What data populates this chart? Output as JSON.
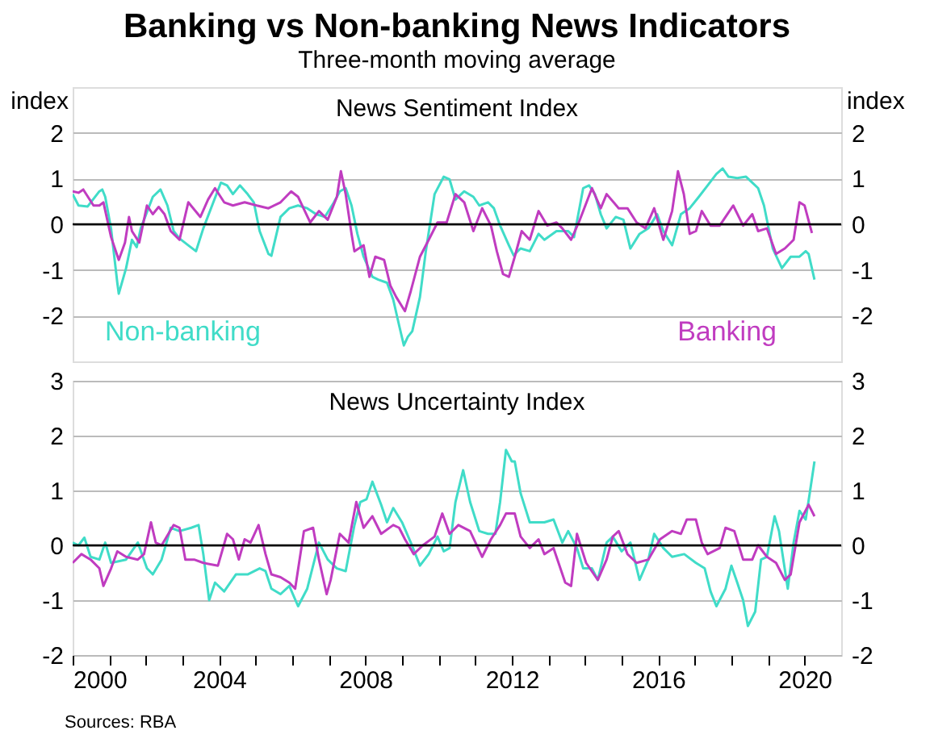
{
  "chart_data": [
    {
      "type": "line",
      "title": "Banking vs Non-banking News Indicators",
      "subtitle": "Three-month moving average",
      "ylabel": "index",
      "y2label": "index",
      "annotations": [
        "News Sentiment Index"
      ],
      "xlim": [
        2000,
        2021
      ],
      "ylim": [
        -3,
        3
      ],
      "yticks": [
        -2,
        -1,
        0,
        1,
        2
      ],
      "y2lim": [
        -3,
        3
      ],
      "y2ticks": [
        -2,
        -1,
        0,
        1,
        2
      ],
      "tick_labels": "y",
      "grid": "y",
      "legend": false,
      "ref_lines": [
        {
          "axis": "y",
          "value": 0,
          "color": "#000000"
        }
      ],
      "series": [
        {
          "name": "Non-banking",
          "color": "#40dcc8",
          "x": [
            2000.0,
            2000.16,
            2000.41,
            2000.73,
            2000.81,
            2000.89,
            2001.05,
            2001.22,
            2001.26,
            2001.46,
            2001.62,
            2001.75,
            2001.86,
            2002.19,
            2002.4,
            2002.59,
            2002.76,
            2002.92,
            2003.16,
            2003.37,
            2003.57,
            2003.81,
            2004.05,
            2004.22,
            2004.38,
            2004.57,
            2004.78,
            2004.95,
            2005.11,
            2005.35,
            2005.43,
            2005.68,
            2005.92,
            2006.16,
            2006.41,
            2006.65,
            2006.89,
            2007.14,
            2007.3,
            2007.46,
            2007.62,
            2007.78,
            2007.95,
            2008.19,
            2008.35,
            2008.59,
            2008.76,
            2008.92,
            2009.05,
            2009.16,
            2009.28,
            2009.49,
            2009.65,
            2009.89,
            2010.14,
            2010.3,
            2010.46,
            2010.7,
            2010.95,
            2011.11,
            2011.35,
            2011.51,
            2011.68,
            2011.92,
            2012.05,
            2012.24,
            2012.49,
            2012.73,
            2012.89,
            2013.22,
            2013.54,
            2013.7,
            2013.95,
            2014.11,
            2014.27,
            2014.43,
            2014.59,
            2014.84,
            2015.05,
            2015.24,
            2015.49,
            2015.73,
            2015.97,
            2016.14,
            2016.38,
            2016.62,
            2016.86,
            2017.11,
            2017.35,
            2017.59,
            2017.76,
            2017.92,
            2018.16,
            2018.4,
            2018.57,
            2018.73,
            2018.89,
            2019.13,
            2019.38,
            2019.62,
            2019.86,
            2020.03,
            2020.11,
            2020.27
          ],
          "values": [
            0.66,
            0.41,
            0.39,
            0.72,
            0.76,
            0.6,
            -0.1,
            -1.28,
            -1.52,
            -0.96,
            -0.34,
            -0.5,
            -0.09,
            0.6,
            0.76,
            0.41,
            -0.15,
            -0.31,
            -0.46,
            -0.59,
            -0.09,
            0.41,
            0.91,
            0.85,
            0.66,
            0.85,
            0.66,
            0.48,
            -0.15,
            -0.65,
            -0.69,
            0.16,
            0.35,
            0.41,
            0.35,
            0.22,
            0.16,
            0.48,
            0.72,
            0.79,
            0.41,
            -0.21,
            -0.71,
            -1.15,
            -1.21,
            -1.28,
            -1.65,
            -2.21,
            -2.65,
            -2.46,
            -2.34,
            -1.59,
            -0.59,
            0.66,
            1.04,
            0.98,
            0.54,
            0.72,
            0.6,
            0.41,
            0.48,
            0.35,
            -0.03,
            -0.46,
            -0.68,
            -0.53,
            -0.59,
            -0.21,
            -0.34,
            -0.15,
            -0.15,
            -0.28,
            0.79,
            0.85,
            0.66,
            0.22,
            -0.09,
            0.16,
            0.1,
            -0.53,
            -0.21,
            -0.09,
            0.22,
            -0.15,
            -0.46,
            0.22,
            0.35,
            0.6,
            0.85,
            1.1,
            1.22,
            1.04,
            1.01,
            1.04,
            0.91,
            0.79,
            0.41,
            -0.53,
            -0.96,
            -0.71,
            -0.71,
            -0.59,
            -0.65,
            -1.21
          ]
        },
        {
          "name": "Banking",
          "color": "#c03cc0",
          "x": [
            2000.0,
            2000.16,
            2000.29,
            2000.57,
            2000.73,
            2000.84,
            2001.05,
            2001.26,
            2001.43,
            2001.54,
            2001.62,
            2001.82,
            2002.03,
            2002.19,
            2002.35,
            2002.51,
            2002.68,
            2002.92,
            2003.16,
            2003.49,
            2003.7,
            2003.89,
            2004.14,
            2004.38,
            2004.7,
            2005.03,
            2005.35,
            2005.68,
            2005.97,
            2006.16,
            2006.49,
            2006.73,
            2006.97,
            2007.22,
            2007.33,
            2007.46,
            2007.62,
            2007.7,
            2007.95,
            2008.11,
            2008.27,
            2008.51,
            2008.68,
            2008.84,
            2009.08,
            2009.24,
            2009.49,
            2009.73,
            2009.97,
            2010.22,
            2010.46,
            2010.7,
            2010.95,
            2011.19,
            2011.43,
            2011.59,
            2011.76,
            2011.92,
            2012.08,
            2012.27,
            2012.49,
            2012.73,
            2012.97,
            2013.22,
            2013.38,
            2013.62,
            2013.86,
            2014.19,
            2014.43,
            2014.59,
            2014.92,
            2015.16,
            2015.41,
            2015.65,
            2015.89,
            2016.14,
            2016.38,
            2016.54,
            2016.7,
            2016.86,
            2017.03,
            2017.19,
            2017.43,
            2017.68,
            2017.84,
            2018.05,
            2018.32,
            2018.57,
            2018.73,
            2018.97,
            2019.22,
            2019.46,
            2019.7,
            2019.86,
            2020.0,
            2020.2
          ],
          "values": [
            0.72,
            0.69,
            0.76,
            0.41,
            0.41,
            0.48,
            -0.28,
            -0.78,
            -0.4,
            0.16,
            -0.15,
            -0.4,
            0.41,
            0.22,
            0.38,
            0.22,
            -0.15,
            -0.34,
            0.48,
            0.16,
            0.54,
            0.79,
            0.48,
            0.41,
            0.48,
            0.41,
            0.35,
            0.48,
            0.72,
            0.6,
            0.04,
            0.29,
            0.1,
            0.6,
            1.16,
            0.66,
            -0.21,
            -0.59,
            -0.46,
            -1.15,
            -0.71,
            -0.78,
            -1.34,
            -1.59,
            -1.9,
            -1.46,
            -0.71,
            -0.34,
            0.04,
            0.04,
            0.66,
            0.48,
            -0.15,
            0.35,
            -0.03,
            -0.59,
            -1.09,
            -1.15,
            -0.71,
            -0.15,
            -0.34,
            0.29,
            -0.03,
            0.04,
            -0.09,
            -0.34,
            0.1,
            0.79,
            0.35,
            0.66,
            0.35,
            0.35,
            0.04,
            -0.09,
            0.35,
            -0.34,
            0.29,
            1.16,
            0.66,
            -0.21,
            -0.15,
            0.29,
            -0.03,
            -0.03,
            0.16,
            0.41,
            -0.03,
            0.22,
            -0.15,
            -0.09,
            -0.65,
            -0.53,
            -0.34,
            0.48,
            0.41,
            -0.19
          ]
        }
      ]
    },
    {
      "type": "line",
      "annotations": [
        "News Uncertainty Index",
        "Sources: RBA"
      ],
      "xlim": [
        2000,
        2021
      ],
      "xticks": [
        2000,
        {
          "value": 2001,
          "label": null
        },
        {
          "value": 2002,
          "label": null
        },
        {
          "value": 2003,
          "label": null
        },
        2004,
        {
          "value": 2005,
          "label": null
        },
        {
          "value": 2006,
          "label": null
        },
        {
          "value": 2007,
          "label": null
        },
        2008,
        {
          "value": 2009,
          "label": null
        },
        {
          "value": 2010,
          "label": null
        },
        {
          "value": 2011,
          "label": null
        },
        2012,
        {
          "value": 2013,
          "label": null
        },
        {
          "value": 2014,
          "label": null
        },
        {
          "value": 2015,
          "label": null
        },
        2016,
        {
          "value": 2017,
          "label": null
        },
        {
          "value": 2018,
          "label": null
        },
        {
          "value": 2019,
          "label": null
        },
        2020
      ],
      "ylim": [
        -2,
        3
      ],
      "yticks": [
        -2,
        -1,
        0,
        1,
        2,
        3
      ],
      "y2lim": [
        -2,
        3
      ],
      "y2ticks": [
        -2,
        -1,
        0,
        1,
        2,
        3
      ],
      "grid": "y",
      "legend": false,
      "ref_lines": [
        {
          "axis": "y",
          "value": 0,
          "color": "#000000"
        }
      ],
      "series": [
        {
          "color": "#40dcc8",
          "x": [
            2000.0,
            2000.16,
            2000.32,
            2000.49,
            2000.73,
            2000.89,
            2001.05,
            2001.46,
            2001.78,
            2002.03,
            2002.19,
            2002.43,
            2002.68,
            2002.92,
            2003.24,
            2003.44,
            2003.57,
            2003.73,
            2003.89,
            2004.14,
            2004.46,
            2004.78,
            2005.11,
            2005.27,
            2005.43,
            2005.68,
            2005.92,
            2006.16,
            2006.41,
            2006.73,
            2006.97,
            2007.22,
            2007.46,
            2007.7,
            2007.86,
            2008.03,
            2008.19,
            2008.43,
            2008.59,
            2008.76,
            2009.0,
            2009.24,
            2009.49,
            2009.73,
            2009.97,
            2010.14,
            2010.3,
            2010.46,
            2010.67,
            2010.86,
            2011.11,
            2011.35,
            2011.55,
            2011.68,
            2011.84,
            2012.0,
            2012.08,
            2012.24,
            2012.49,
            2012.89,
            2013.14,
            2013.38,
            2013.54,
            2013.78,
            2013.95,
            2014.19,
            2014.35,
            2014.59,
            2014.76,
            2015.0,
            2015.24,
            2015.49,
            2015.73,
            2015.89,
            2016.14,
            2016.38,
            2016.71,
            2017.03,
            2017.27,
            2017.43,
            2017.59,
            2017.84,
            2018.0,
            2018.16,
            2018.32,
            2018.45,
            2018.65,
            2018.81,
            2018.97,
            2019.18,
            2019.3,
            2019.54,
            2019.7,
            2019.86,
            2020.03,
            2020.14,
            2020.27
          ],
          "values": [
            0.05,
            0,
            0.14,
            -0.21,
            -0.26,
            0.05,
            -0.32,
            -0.26,
            0.05,
            -0.42,
            -0.53,
            -0.26,
            0.32,
            0.26,
            0.32,
            0.37,
            -0.16,
            -1.0,
            -0.68,
            -0.84,
            -0.53,
            -0.53,
            -0.42,
            -0.47,
            -0.79,
            -0.89,
            -0.74,
            -1.11,
            -0.79,
            0.05,
            -0.26,
            -0.42,
            -0.47,
            0.37,
            0.79,
            0.84,
            1.16,
            0.74,
            0.42,
            0.68,
            0.42,
            0.05,
            -0.37,
            -0.16,
            0.16,
            -0.11,
            -0.05,
            0.79,
            1.37,
            0.79,
            0.26,
            0.21,
            0.21,
            0.79,
            1.74,
            1.53,
            1.53,
            0.95,
            0.42,
            0.42,
            0.47,
            0.05,
            0.26,
            -0.05,
            -0.42,
            -0.42,
            -0.63,
            0.05,
            0.16,
            -0.11,
            0.05,
            -0.63,
            -0.26,
            0.21,
            -0.05,
            -0.21,
            -0.16,
            -0.32,
            -0.42,
            -0.84,
            -1.11,
            -0.79,
            -0.37,
            -0.68,
            -1.0,
            -1.47,
            -1.21,
            -0.26,
            -0.21,
            0.53,
            0.26,
            -0.79,
            0.05,
            0.63,
            0.47,
            0.95,
            1.53
          ]
        },
        {
          "color": "#c03cc0",
          "x": [
            2000.0,
            2000.24,
            2000.49,
            2000.73,
            2000.84,
            2001.05,
            2001.22,
            2001.46,
            2001.78,
            2001.95,
            2002.14,
            2002.27,
            2002.43,
            2002.76,
            2002.92,
            2003.08,
            2003.32,
            2003.57,
            2003.97,
            2004.22,
            2004.38,
            2004.54,
            2004.7,
            2004.86,
            2005.08,
            2005.27,
            2005.43,
            2005.68,
            2005.92,
            2006.08,
            2006.32,
            2006.57,
            2006.73,
            2006.94,
            2007.05,
            2007.3,
            2007.54,
            2007.75,
            2007.95,
            2008.19,
            2008.43,
            2008.76,
            2008.92,
            2009.08,
            2009.32,
            2009.57,
            2009.89,
            2010.1,
            2010.3,
            2010.54,
            2010.86,
            2011.19,
            2011.43,
            2011.68,
            2011.84,
            2012.08,
            2012.24,
            2012.49,
            2012.73,
            2012.89,
            2013.14,
            2013.46,
            2013.62,
            2013.78,
            2014.03,
            2014.35,
            2014.59,
            2014.76,
            2014.92,
            2015.16,
            2015.41,
            2015.73,
            2016.05,
            2016.38,
            2016.62,
            2016.78,
            2017.03,
            2017.19,
            2017.35,
            2017.68,
            2017.84,
            2018.08,
            2018.32,
            2018.57,
            2018.73,
            2018.97,
            2019.22,
            2019.46,
            2019.62,
            2019.86,
            2020.11,
            2020.27
          ],
          "values": [
            -0.32,
            -0.16,
            -0.26,
            -0.42,
            -0.74,
            -0.42,
            -0.11,
            -0.21,
            -0.26,
            -0.16,
            0.42,
            0.05,
            0,
            0.37,
            0.32,
            -0.26,
            -0.26,
            -0.32,
            -0.37,
            0.21,
            0.11,
            -0.26,
            0.11,
            0.05,
            0.37,
            -0.16,
            -0.53,
            -0.58,
            -0.68,
            -0.79,
            0.26,
            0.32,
            -0.26,
            -0.89,
            -0.63,
            0.21,
            0.05,
            0.79,
            0.32,
            0.53,
            0.21,
            0.37,
            0.32,
            0.11,
            -0.16,
            0,
            0.16,
            0.58,
            0.21,
            0.37,
            0.26,
            -0.21,
            0.11,
            0.37,
            0.58,
            0.58,
            0.16,
            -0.05,
            0.11,
            -0.16,
            -0.05,
            -0.68,
            -0.74,
            0.21,
            -0.32,
            -0.63,
            -0.26,
            0.16,
            0.26,
            -0.16,
            -0.32,
            -0.26,
            0.11,
            0.26,
            0.21,
            0.47,
            0.47,
            0.05,
            -0.16,
            -0.05,
            0.32,
            0.26,
            -0.26,
            -0.26,
            0,
            -0.21,
            -0.32,
            -0.63,
            -0.53,
            0.42,
            0.74,
            0.53
          ]
        }
      ]
    }
  ]
}
